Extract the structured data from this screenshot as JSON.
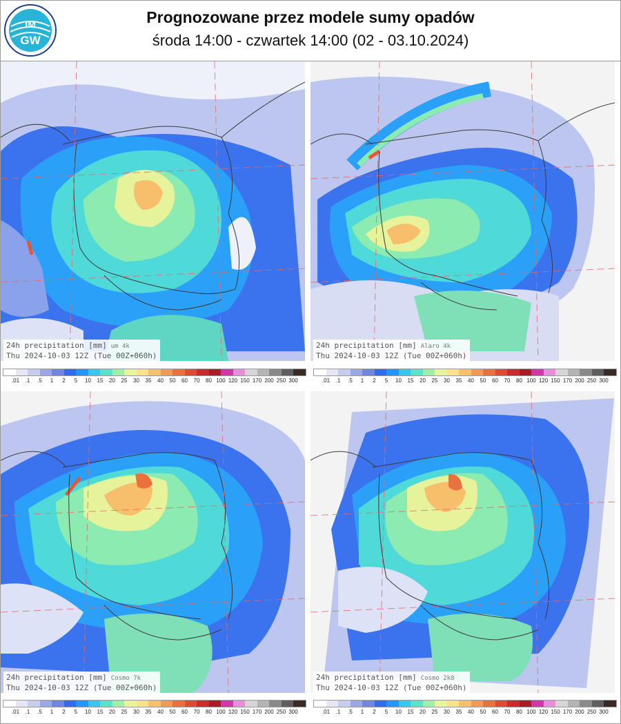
{
  "header": {
    "logo_text": "IMGW",
    "title": "Prognozowane przez modele sumy opadów",
    "subtitle": "środa 14:00 - czwartek 14:00 (02 - 03.10.2024)"
  },
  "colorbar": {
    "labels": [
      ".01",
      ".1",
      ".5",
      "1",
      "2",
      "5",
      "10",
      "15",
      "20",
      "25",
      "30",
      "35",
      "40",
      "50",
      "60",
      "70",
      "80",
      "100",
      "120",
      "150",
      "170",
      "200",
      "250",
      "300"
    ],
    "colors": [
      "#ffffff",
      "#e6e6f5",
      "#c8cdef",
      "#9ba8e8",
      "#6f86e3",
      "#2f6cf0",
      "#2296ff",
      "#34c8ee",
      "#5ae3c8",
      "#9ef0a8",
      "#e8f59a",
      "#fbe189",
      "#f8c06a",
      "#f29a55",
      "#e9713e",
      "#de4a32",
      "#cc2a2d",
      "#a71c26",
      "#d237aa",
      "#e68fd8",
      "#d6d6d6",
      "#b4b4b4",
      "#8a8a8a",
      "#5e5e5e",
      "#3a2a26"
    ]
  },
  "panels": [
    {
      "line1": "24h precipitation  [mm]",
      "model": "um 4k",
      "line2": "Thu 2024-10-03 12Z (Tue 00Z+060h)"
    },
    {
      "line1": "24h precipitation  [mm]",
      "model": "Alaro 4k",
      "line2": "Thu 2024-10-03 12Z (Tue 00Z+060h)"
    },
    {
      "line1": "24h precipitation  [mm]",
      "model": "Cosmo 7k",
      "line2": "Thu 2024-10-03 12Z (Tue 00Z+060h)"
    },
    {
      "line1": "24h precipitation  [mm]",
      "model": "Cosmo 2k8",
      "line2": "Thu 2024-10-03 12Z (Tue 00Z+060h)"
    }
  ]
}
